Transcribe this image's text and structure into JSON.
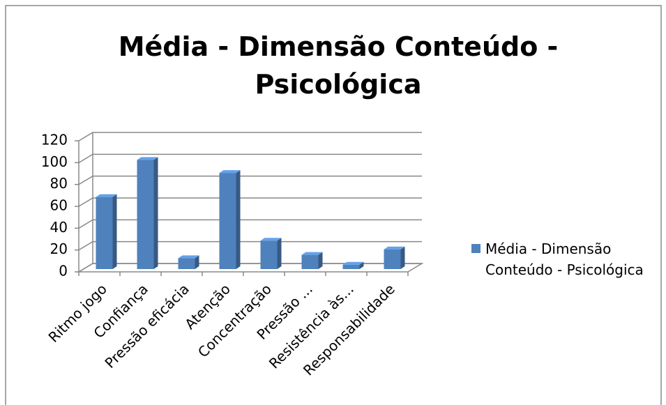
{
  "chart_data": {
    "type": "bar3d",
    "title": "Média - Dimensão Conteúdo - Psicológica",
    "categories": [
      "Ritmo jogo",
      "Confiança",
      "Pressão eficácia",
      "Atenção",
      "Concentração",
      "Pressão ...",
      "Resistência às...",
      "Responsabilidade"
    ],
    "series": [
      {
        "name": "Média - Dimensão Conteúdo - Psicológica",
        "color": "#4f81bd",
        "values": [
          66,
          100,
          10,
          88,
          26,
          13,
          4,
          18
        ]
      }
    ],
    "ylim": [
      0,
      120
    ],
    "yticks": [
      0,
      20,
      40,
      60,
      80,
      100,
      120
    ],
    "grid": true,
    "legend": "right"
  }
}
